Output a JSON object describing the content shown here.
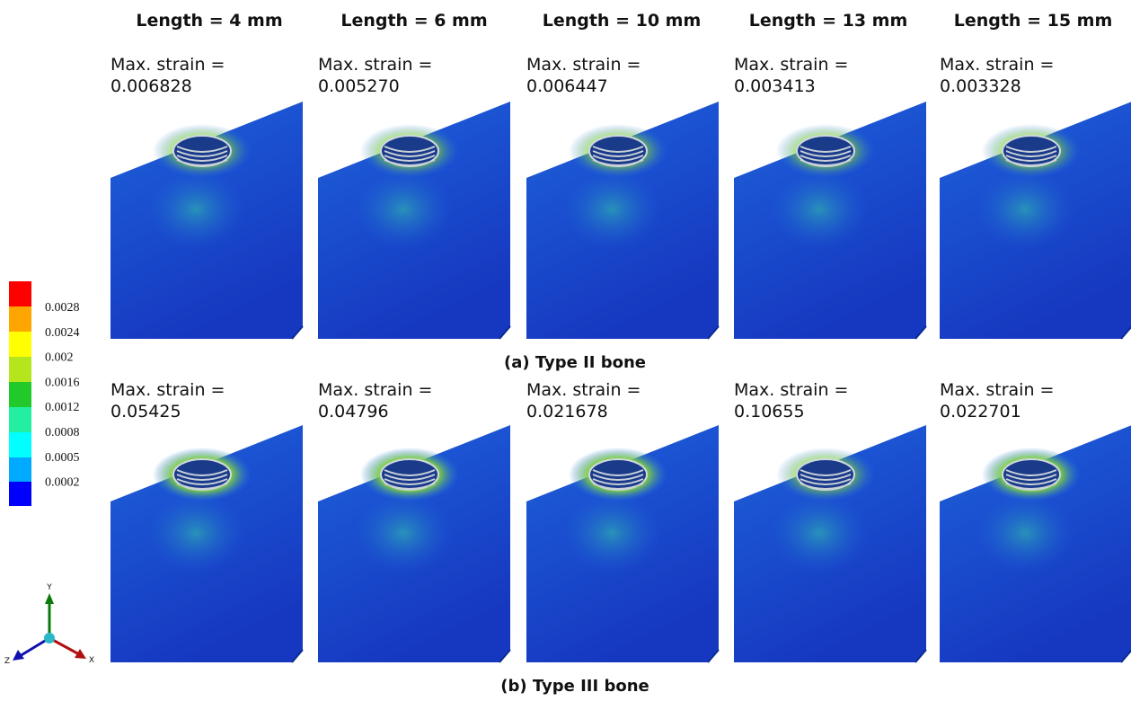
{
  "columns": [
    "Length = 4 mm",
    "Length = 6 mm",
    "Length = 10 mm",
    "Length = 13 mm",
    "Length = 15 mm"
  ],
  "rows": [
    {
      "caption": "(a) Type II bone",
      "panels": [
        {
          "label": "Max. strain =",
          "value": "0.006828"
        },
        {
          "label": "Max. strain =",
          "value": "0.005270"
        },
        {
          "label": "Max. strain =",
          "value": "0.006447"
        },
        {
          "label": "Max. strain =",
          "value": "0.003413"
        },
        {
          "label": "Max. strain =",
          "value": "0.003328"
        }
      ]
    },
    {
      "caption": "(b) Type III bone",
      "panels": [
        {
          "label": "Max. strain =",
          "value": "0.05425"
        },
        {
          "label": "Max. strain =",
          "value": "0.04796"
        },
        {
          "label": "Max. strain =",
          "value": "0.021678"
        },
        {
          "label": "Max. strain =",
          "value": "0.10655"
        },
        {
          "label": "Max. strain =",
          "value": "0.022701"
        }
      ]
    }
  ],
  "legend": {
    "ticks": [
      "0.0028",
      "0.0024",
      "0.002",
      "0.0016",
      "0.0012",
      "0.0008",
      "0.0005",
      "0.0002"
    ]
  },
  "axes": {
    "y": "Y",
    "z": "Z",
    "x": "X"
  }
}
